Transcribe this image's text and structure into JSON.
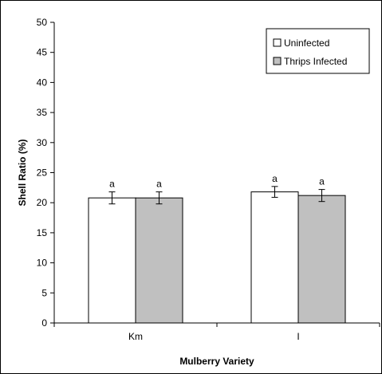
{
  "chart_data": {
    "type": "bar",
    "title": "",
    "xlabel": "Mulberry Variety",
    "ylabel": "Shell Ratio (%)",
    "ylim": [
      0,
      50
    ],
    "yticks": [
      0,
      5,
      10,
      15,
      20,
      25,
      30,
      35,
      40,
      45,
      50
    ],
    "categories": [
      "Km",
      "I"
    ],
    "series": [
      {
        "name": "Uninfected",
        "color": "#ffffff",
        "values": [
          20.8,
          21.8
        ],
        "errors": [
          1.0,
          0.9
        ],
        "labels": [
          "a",
          "a"
        ]
      },
      {
        "name": "Thrips Infected",
        "color": "#c0c0c0",
        "values": [
          20.8,
          21.2
        ],
        "errors": [
          1.0,
          1.0
        ],
        "labels": [
          "a",
          "a"
        ]
      }
    ],
    "grid": false,
    "legend_position": "top-right"
  }
}
